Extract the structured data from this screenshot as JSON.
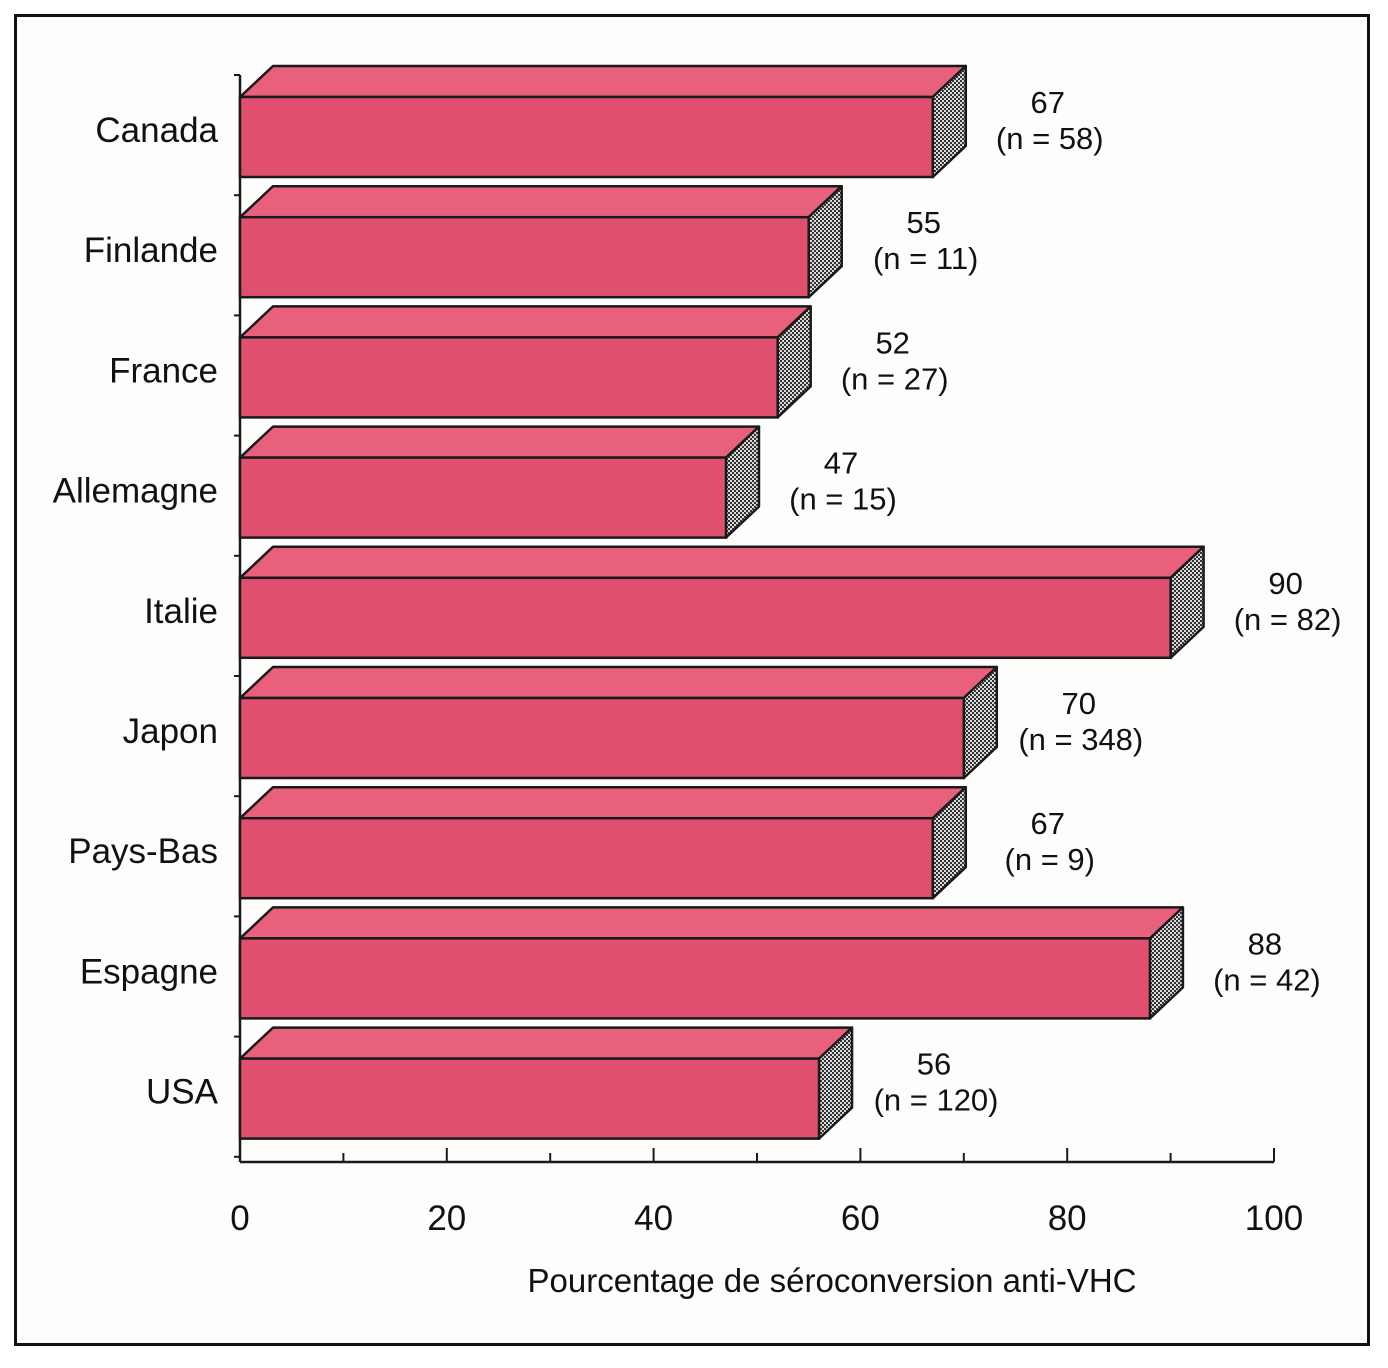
{
  "chart_data": {
    "type": "bar",
    "orientation": "horizontal",
    "categories": [
      "Canada",
      "Finlande",
      "France",
      "Allemagne",
      "Italie",
      "Japon",
      "Pays-Bas",
      "Espagne",
      "USA"
    ],
    "values": [
      67,
      55,
      52,
      47,
      90,
      70,
      67,
      88,
      56
    ],
    "value_labels": [
      "67",
      "55",
      "52",
      "47",
      "90",
      "70",
      "67",
      "88",
      "56"
    ],
    "n_labels": [
      "(n = 58)",
      "(n = 11)",
      "(n = 27)",
      "(n = 15)",
      "(n = 82)",
      "(n = 348)",
      "(n = 9)",
      "(n = 42)",
      "(n = 120)"
    ],
    "x_ticks": [
      "0",
      "20",
      "40",
      "60",
      "80",
      "100"
    ],
    "xlim": [
      0,
      100
    ],
    "xlabel": "Pourcentage de séroconversion anti-VHC",
    "grid": false,
    "colors": {
      "bar_front": "#e0506e",
      "bar_top": "#e8607c",
      "bar_side": "#6a6a6a",
      "outline": "#1a1a1a"
    }
  }
}
